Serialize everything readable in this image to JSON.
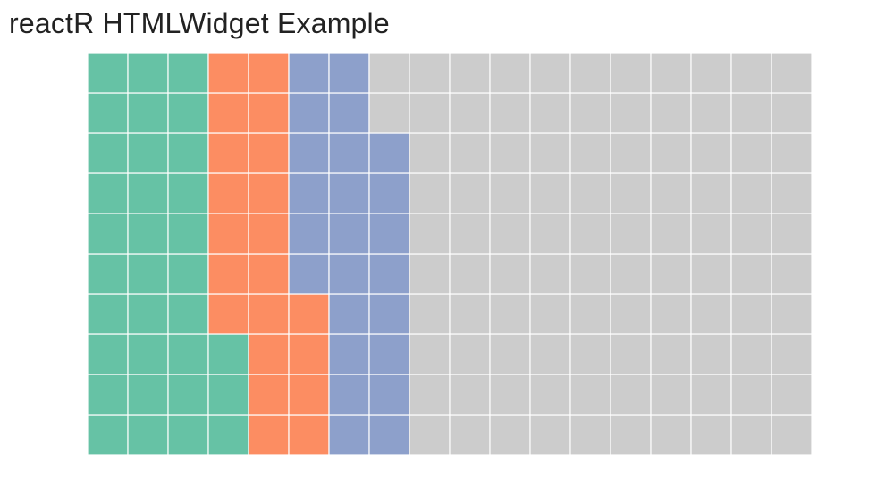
{
  "title": "reactR HTMLWidget Example",
  "chart_data": {
    "type": "waffle",
    "rows": 10,
    "cols": 18,
    "fill_order": "column-major, bottom-to-top within each column",
    "series": [
      {
        "color": "#66c2a5",
        "count": 33
      },
      {
        "color": "#fc8d62",
        "count": 21
      },
      {
        "color": "#8da0cb",
        "count": 24
      },
      {
        "color": "#cccccc",
        "count": 102
      }
    ],
    "grid_line_color": "#ffffff",
    "legend": "none"
  }
}
